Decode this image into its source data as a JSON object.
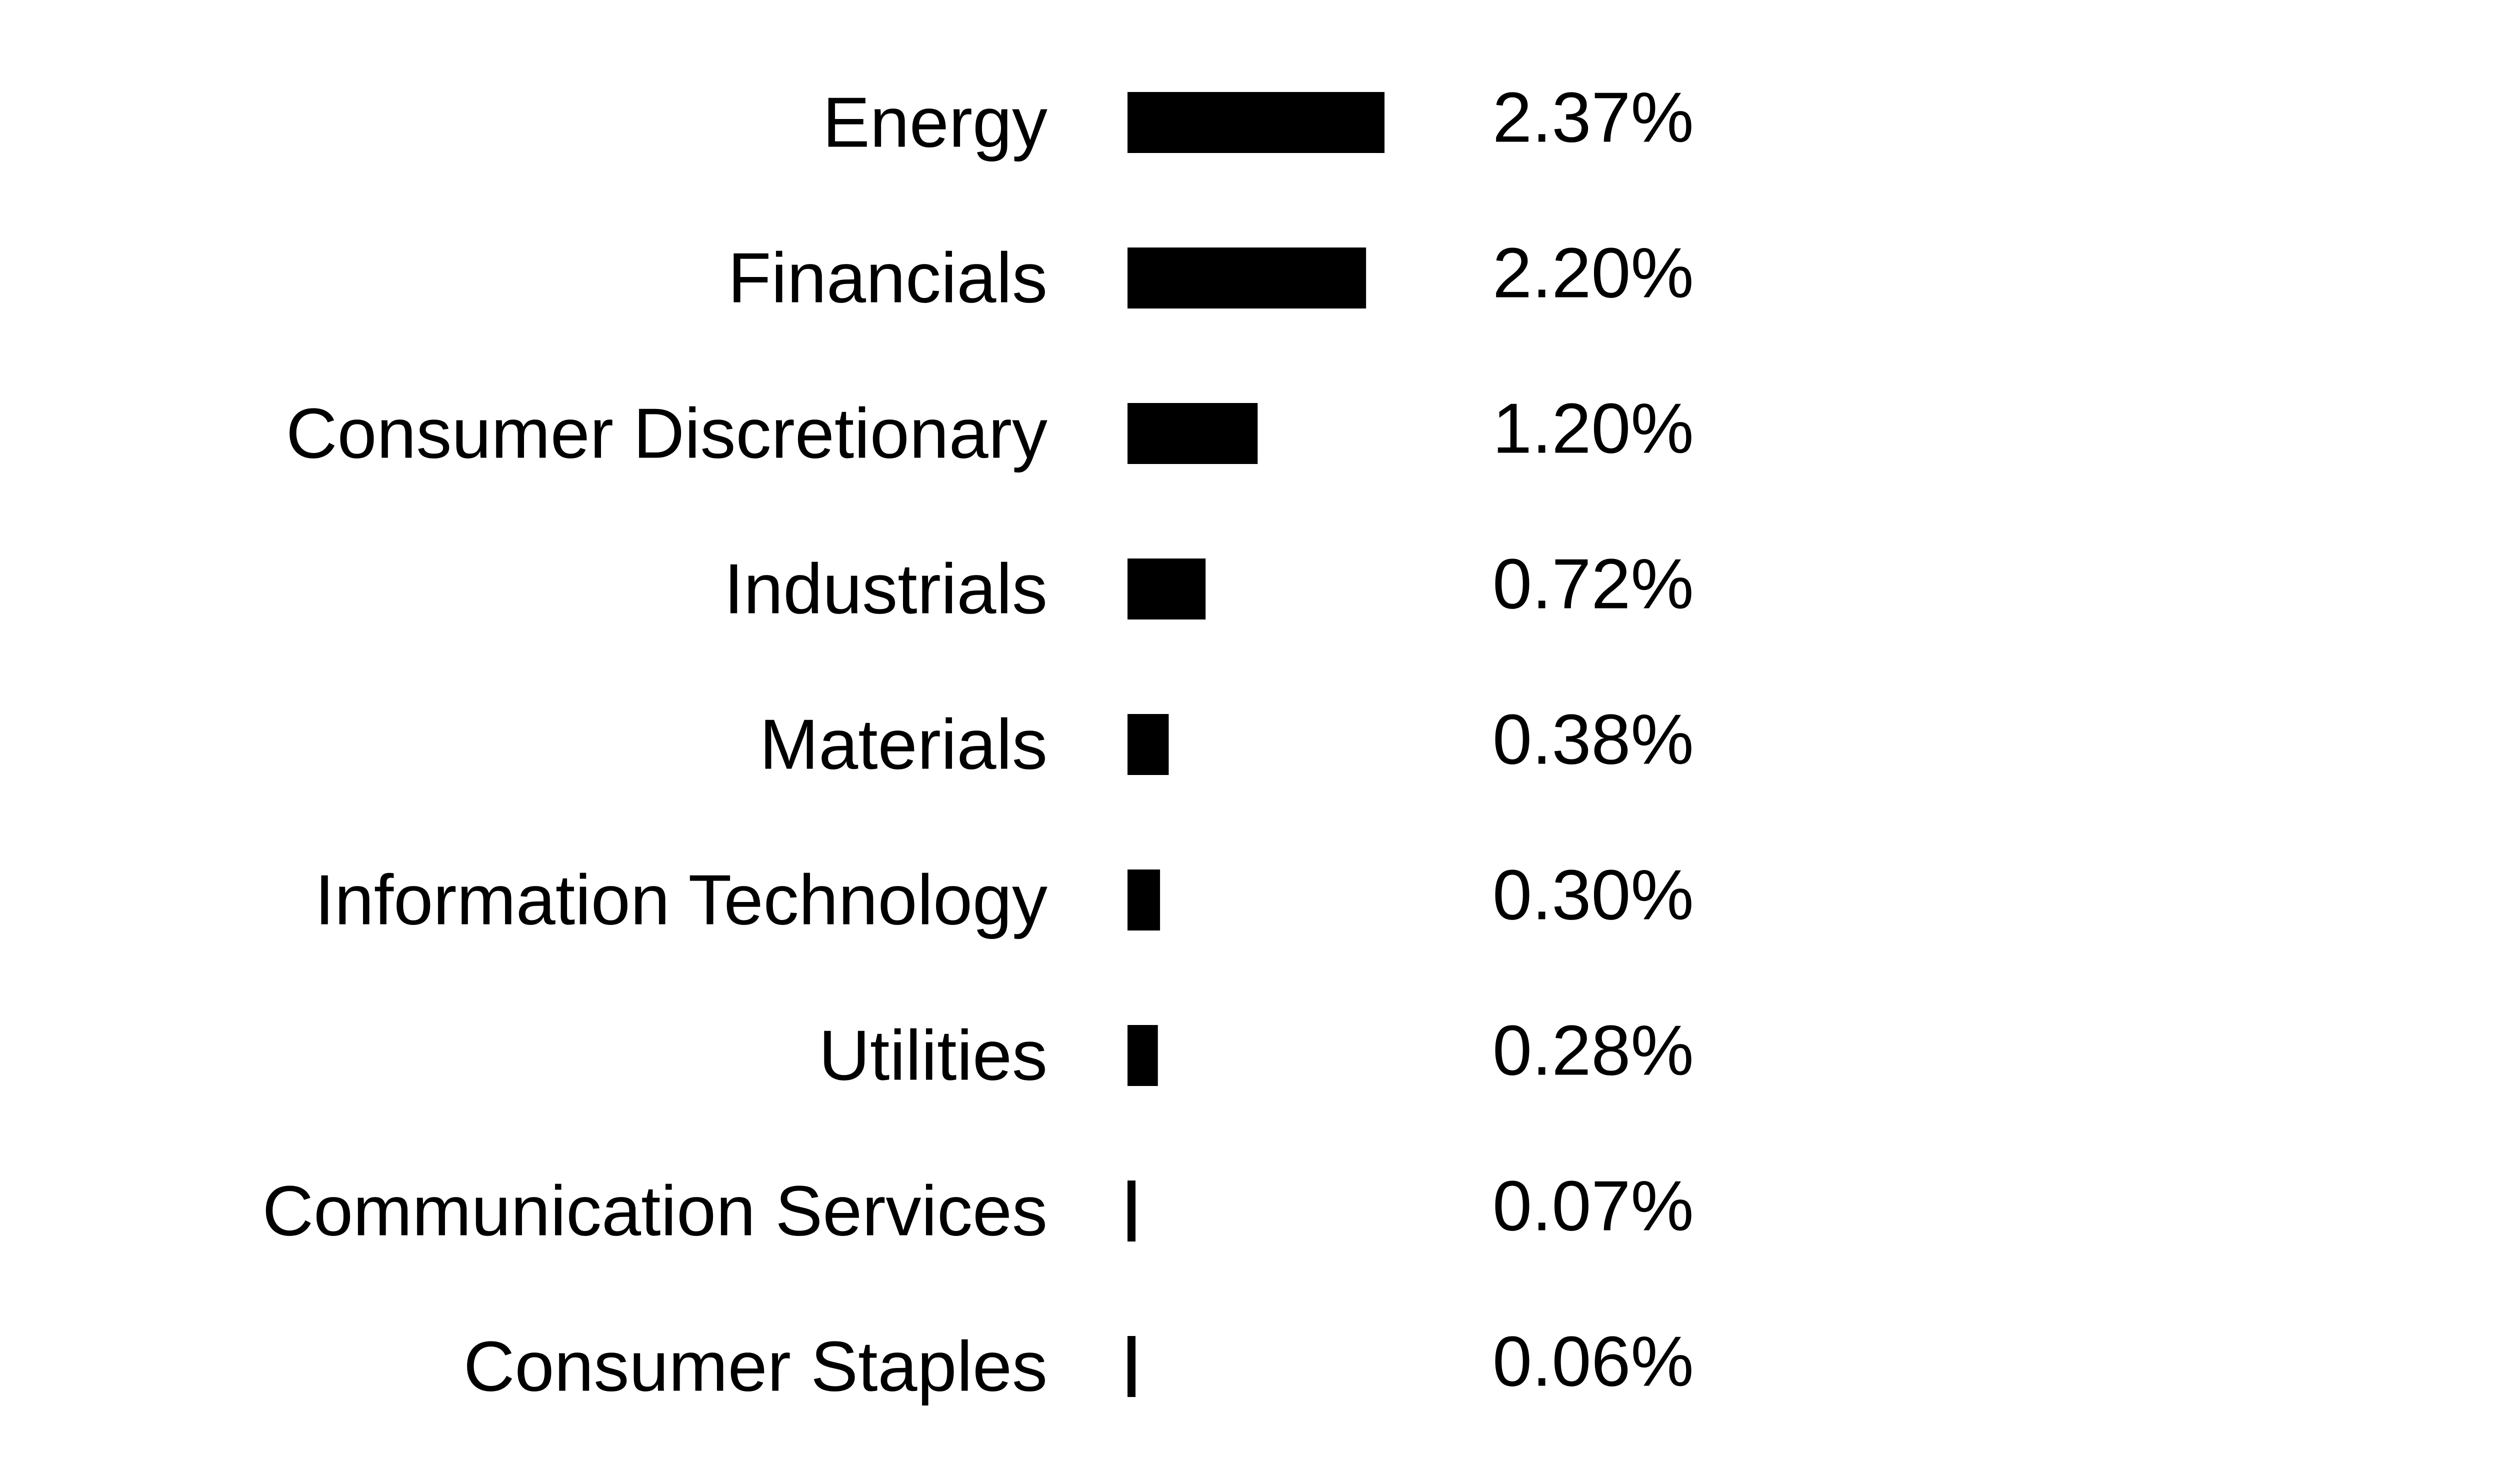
{
  "chart_data": {
    "type": "bar",
    "orientation": "horizontal",
    "title": "",
    "xlabel": "",
    "ylabel": "",
    "grid": false,
    "legend": "none",
    "bar_color": "#000000",
    "text_color": "#000000",
    "background": "#ffffff",
    "xlim": [
      0,
      2.37
    ],
    "categories": [
      "Energy",
      "Financials",
      "Consumer Discretionary",
      "Industrials",
      "Materials",
      "Information Technology",
      "Utilities",
      "Communication Services",
      "Consumer Staples"
    ],
    "values": [
      2.37,
      2.2,
      1.2,
      0.72,
      0.38,
      0.3,
      0.28,
      0.07,
      0.06
    ],
    "value_labels": [
      "2.37%",
      "2.20%",
      "1.20%",
      "0.72%",
      "0.38%",
      "0.30%",
      "0.28%",
      "0.07%",
      "0.06%"
    ]
  }
}
